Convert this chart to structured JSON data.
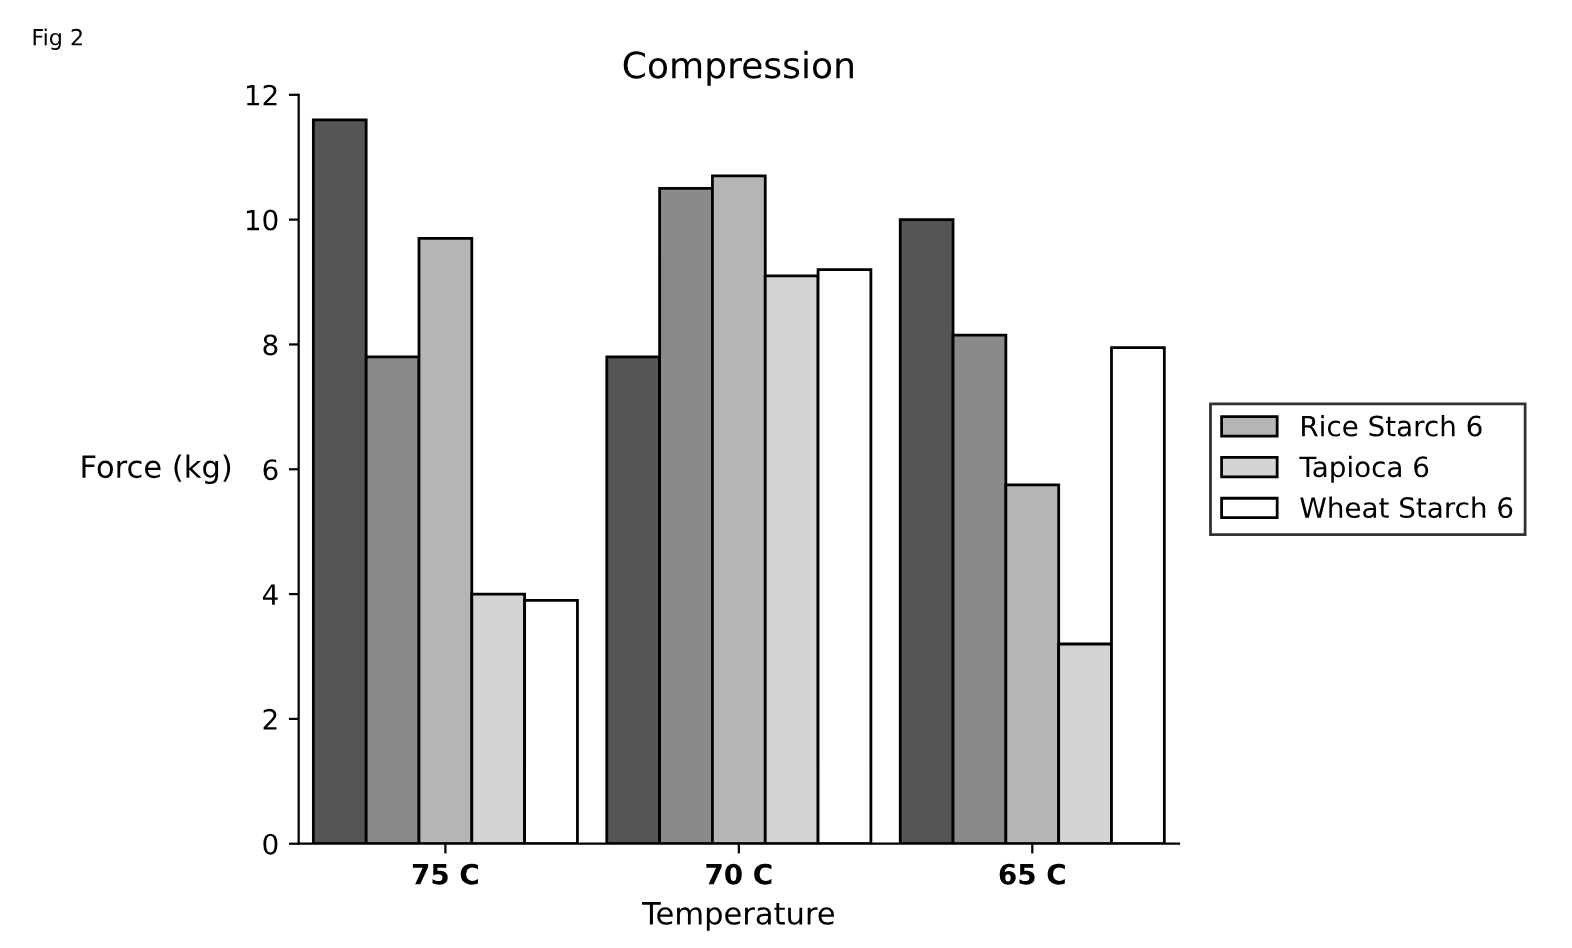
{
  "chart_data": {
    "type": "bar",
    "title": "Compression",
    "xlabel": "Temperature",
    "ylabel": "Force (kg)",
    "annotations": [
      "Fig 2"
    ],
    "categories": [
      "75 C",
      "70 C",
      "65 C"
    ],
    "series": [
      {
        "color": "#555555",
        "values": [
          11.6,
          7.8,
          10.0
        ]
      },
      {
        "color": "#8a8a8a",
        "values": [
          7.8,
          10.5,
          8.15
        ]
      },
      {
        "name": "Rice Starch 6",
        "color": "#b5b5b5",
        "values": [
          9.7,
          10.7,
          5.75
        ]
      },
      {
        "name": "Tapioca 6",
        "color": "#d4d4d4",
        "values": [
          4.0,
          9.1,
          3.2
        ]
      },
      {
        "name": "Wheat Starch 6",
        "color": "#ffffff",
        "values": [
          3.9,
          9.2,
          7.95
        ]
      }
    ],
    "ylim": [
      0,
      12
    ],
    "yticks": [
      0,
      2,
      4,
      6,
      8,
      10,
      12
    ],
    "grid": false,
    "legend": "right"
  }
}
